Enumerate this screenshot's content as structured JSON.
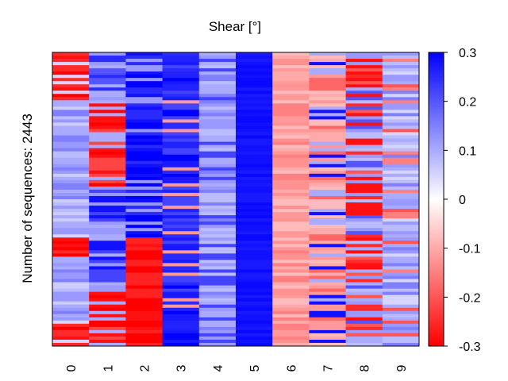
{
  "chart_data": {
    "type": "heatmap",
    "title": "Shear [°]",
    "ylabel": "Number of sequences: 2443",
    "xlabel": "",
    "x_categories": [
      "0",
      "1",
      "2",
      "3",
      "4",
      "5",
      "6",
      "7",
      "8",
      "9"
    ],
    "colorscale": {
      "min": -0.3,
      "max": 0.3,
      "low_color": "#ff0000",
      "mid_color": "#ffffff",
      "high_color": "#0000ff",
      "ticks": [
        "0.3",
        "0.2",
        "0.1",
        "0",
        "-0.1",
        "-0.2",
        "-0.3"
      ]
    },
    "approx_columns": [
      {
        "category": "0",
        "dominant": "mixed: red blocks at top, ~0.6-0.65 and bottom; light blue middle",
        "typical_values": [
          -0.3,
          0.1
        ]
      },
      {
        "category": "1",
        "dominant": "mixed: light blue top, red 0.15-0.45 and bottom, blue middle",
        "typical_values": [
          -0.3,
          0.2
        ]
      },
      {
        "category": "2",
        "dominant": "blue top two thirds, red bottom third",
        "typical_values": [
          0.3,
          -0.3
        ]
      },
      {
        "category": "3",
        "dominant": "blue with light red stripes",
        "typical_values": [
          0.25,
          -0.1
        ]
      },
      {
        "category": "4",
        "dominant": "light blue",
        "typical_values": [
          0.1
        ]
      },
      {
        "category": "5",
        "dominant": "solid blue",
        "typical_values": [
          0.28
        ]
      },
      {
        "category": "6",
        "dominant": "light red",
        "typical_values": [
          -0.1
        ]
      },
      {
        "category": "7",
        "dominant": "mixed light red and blue",
        "typical_values": [
          -0.1,
          0.25
        ]
      },
      {
        "category": "8",
        "dominant": "mixed red and light blue",
        "typical_values": [
          -0.25,
          0.1
        ]
      },
      {
        "category": "9",
        "dominant": "mixed light blue and light red",
        "typical_values": [
          0.1,
          -0.15
        ]
      }
    ]
  }
}
